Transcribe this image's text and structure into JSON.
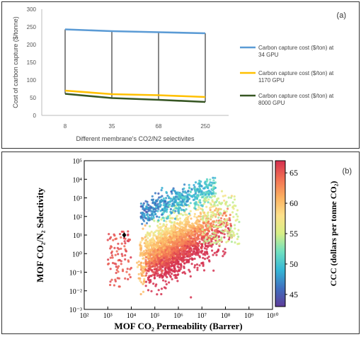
{
  "chart_data": [
    {
      "type": "line",
      "panel_label": "(a)",
      "xlabel": "Different membrane's CO2/N2 selectivites",
      "ylabel": "Cost of carbon capture ($/tonne)",
      "categories": [
        "8",
        "35",
        "68",
        "250"
      ],
      "ylim": [
        0,
        300
      ],
      "yticks": [
        "0",
        "50",
        "100",
        "150",
        "200",
        "250",
        "300"
      ],
      "grid": false,
      "legend_position": "right",
      "series": [
        {
          "name": "Carbon capture cost ($/ton) at 34 GPU",
          "color": "#5b9bd5",
          "values": [
            243,
            238,
            235,
            232
          ]
        },
        {
          "name": "Carbon capture cost ($/ton) at 1170 GPU",
          "color": "#ffc000",
          "values": [
            70,
            60,
            57,
            52
          ]
        },
        {
          "name": "Carbon capture cost ($/ton) at 8000 GPU",
          "color": "#375623",
          "values": [
            61,
            49,
            44,
            38
          ]
        }
      ]
    },
    {
      "type": "scatter",
      "panel_label": "(b)",
      "xlabel": "MOF CO₂ Permeability (Barrer)",
      "ylabel": "MOF CO₂/N₂ Selectivity",
      "x_scale": "log",
      "y_scale": "log",
      "xlim": [
        100,
        10000000000
      ],
      "ylim": [
        0.001,
        100000
      ],
      "x_tick_labels": [
        "10²",
        "10³",
        "10⁴",
        "10⁵",
        "10⁶",
        "10⁷",
        "10⁸",
        "10⁹",
        "10¹⁰"
      ],
      "y_tick_labels": [
        "10⁻³",
        "10⁻²",
        "10⁻¹",
        "10⁰",
        "10¹",
        "10²",
        "10³",
        "10⁴",
        "10⁵"
      ],
      "colorbar": {
        "label": "CCC (dollars per tonne CO₂)",
        "range": [
          43,
          67
        ],
        "tick_labels": [
          "45",
          "50",
          "55",
          "60",
          "65"
        ],
        "colormap": [
          "#5e3c99",
          "#3f6fbf",
          "#34b6d6",
          "#6fe0c0",
          "#d7ef86",
          "#fde08a",
          "#fbb060",
          "#f27053",
          "#d5304f"
        ]
      },
      "marker_point": {
        "x": 5000,
        "y": 10,
        "color": "#000000"
      }
    }
  ]
}
